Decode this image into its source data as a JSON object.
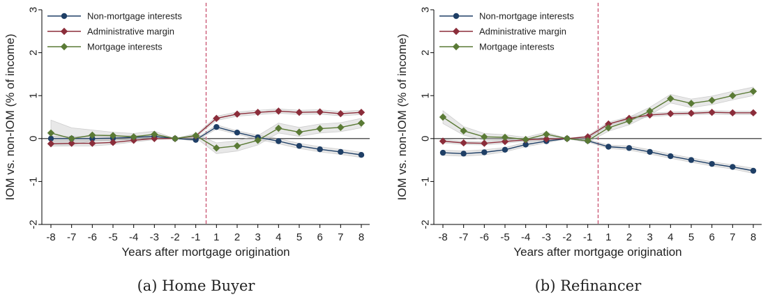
{
  "panels": [
    {
      "caption": "(a) Home Buyer",
      "chart_data": {
        "type": "line",
        "xlabel": "Years after mortgage origination",
        "ylabel": "IOM vs. non-IOM (% of income)",
        "ylim": [
          -2,
          3
        ],
        "yticks": [
          -2,
          -1,
          0,
          1,
          2,
          3
        ],
        "xtick_labels": [
          "-8",
          "-7",
          "-6",
          "-5",
          "-4",
          "-3",
          "-2",
          "-1",
          "1",
          "2",
          "3",
          "4",
          "5",
          "6",
          "7",
          "8"
        ],
        "x": [
          -8,
          -7,
          -6,
          -5,
          -4,
          -3,
          -2,
          -1,
          1,
          2,
          3,
          4,
          5,
          6,
          7,
          8
        ],
        "reference_line": {
          "position": "between -1 and 1",
          "style": "dashed"
        },
        "legend_position": "top-left",
        "series": [
          {
            "name": "Non-mortgage interests",
            "color": "#1f3f66",
            "marker": "circle",
            "values": [
              0.0,
              0.0,
              0.0,
              0.01,
              0.03,
              0.05,
              0.0,
              -0.03,
              0.27,
              0.14,
              0.03,
              -0.06,
              -0.17,
              -0.25,
              -0.31,
              -0.38
            ],
            "ci_low": [
              -0.05,
              -0.05,
              -0.05,
              -0.04,
              -0.01,
              0.02,
              0.0,
              -0.06,
              0.22,
              0.1,
              -0.02,
              -0.12,
              -0.23,
              -0.31,
              -0.37,
              -0.44
            ],
            "ci_high": [
              0.05,
              0.05,
              0.05,
              0.06,
              0.07,
              0.08,
              0.0,
              0.0,
              0.32,
              0.18,
              0.08,
              0.0,
              -0.11,
              -0.19,
              -0.25,
              -0.32
            ]
          },
          {
            "name": "Administrative margin",
            "color": "#8b2d3a",
            "marker": "diamond",
            "values": [
              -0.12,
              -0.11,
              -0.11,
              -0.09,
              -0.04,
              0.0,
              0.0,
              0.06,
              0.47,
              0.57,
              0.61,
              0.64,
              0.61,
              0.62,
              0.58,
              0.61
            ],
            "ci_low": [
              -0.18,
              -0.17,
              -0.17,
              -0.14,
              -0.08,
              -0.03,
              0.0,
              0.03,
              0.42,
              0.52,
              0.56,
              0.59,
              0.56,
              0.57,
              0.53,
              0.56
            ],
            "ci_high": [
              -0.06,
              -0.05,
              -0.05,
              -0.04,
              0.0,
              0.03,
              0.0,
              0.09,
              0.52,
              0.62,
              0.66,
              0.69,
              0.66,
              0.67,
              0.63,
              0.66
            ]
          },
          {
            "name": "Mortgage interests",
            "color": "#5a7a35",
            "marker": "diamond",
            "values": [
              0.13,
              0.0,
              0.08,
              0.07,
              0.04,
              0.1,
              0.0,
              0.07,
              -0.22,
              -0.17,
              -0.04,
              0.24,
              0.15,
              0.23,
              0.26,
              0.36
            ],
            "ci_low": [
              -0.15,
              -0.15,
              -0.05,
              -0.03,
              -0.03,
              0.05,
              0.0,
              0.02,
              -0.35,
              -0.29,
              -0.15,
              0.13,
              0.05,
              0.13,
              0.16,
              0.25
            ],
            "ci_high": [
              0.43,
              0.25,
              0.2,
              0.15,
              0.12,
              0.17,
              0.0,
              0.12,
              -0.1,
              -0.05,
              0.07,
              0.36,
              0.26,
              0.34,
              0.37,
              0.47
            ]
          }
        ]
      }
    },
    {
      "caption": "(b) Refinancer",
      "chart_data": {
        "type": "line",
        "xlabel": "Years after mortgage origination",
        "ylabel": "IOM vs. non-IOM (% of income)",
        "ylim": [
          -2,
          3
        ],
        "yticks": [
          -2,
          -1,
          0,
          1,
          2,
          3
        ],
        "xtick_labels": [
          "-8",
          "-7",
          "-6",
          "-5",
          "-4",
          "-3",
          "-2",
          "-1",
          "1",
          "2",
          "3",
          "4",
          "5",
          "6",
          "7",
          "8"
        ],
        "x": [
          -8,
          -7,
          -6,
          -5,
          -4,
          -3,
          -2,
          -1,
          1,
          2,
          3,
          4,
          5,
          6,
          7,
          8
        ],
        "reference_line": {
          "position": "between -1 and 1",
          "style": "dashed"
        },
        "legend_position": "top-left",
        "series": [
          {
            "name": "Non-mortgage interests",
            "color": "#1f3f66",
            "marker": "circle",
            "values": [
              -0.33,
              -0.35,
              -0.32,
              -0.26,
              -0.14,
              -0.06,
              0.0,
              -0.05,
              -0.19,
              -0.22,
              -0.31,
              -0.41,
              -0.5,
              -0.59,
              -0.66,
              -0.75
            ],
            "ci_low": [
              -0.39,
              -0.41,
              -0.38,
              -0.31,
              -0.19,
              -0.1,
              0.0,
              -0.08,
              -0.23,
              -0.27,
              -0.36,
              -0.46,
              -0.55,
              -0.64,
              -0.71,
              -0.81
            ],
            "ci_high": [
              -0.27,
              -0.29,
              -0.26,
              -0.21,
              -0.09,
              -0.02,
              0.0,
              -0.02,
              -0.15,
              -0.17,
              -0.26,
              -0.36,
              -0.45,
              -0.54,
              -0.61,
              -0.69
            ]
          },
          {
            "name": "Administrative margin",
            "color": "#8b2d3a",
            "marker": "diamond",
            "values": [
              -0.06,
              -0.1,
              -0.11,
              -0.07,
              -0.03,
              -0.01,
              0.0,
              0.04,
              0.34,
              0.47,
              0.55,
              0.58,
              0.59,
              0.61,
              0.6,
              0.6
            ],
            "ci_low": [
              -0.1,
              -0.14,
              -0.15,
              -0.11,
              -0.06,
              -0.04,
              0.0,
              0.01,
              0.3,
              0.43,
              0.51,
              0.54,
              0.55,
              0.57,
              0.56,
              0.56
            ],
            "ci_high": [
              -0.02,
              -0.06,
              -0.07,
              -0.03,
              0.0,
              0.02,
              0.0,
              0.07,
              0.38,
              0.51,
              0.59,
              0.62,
              0.63,
              0.65,
              0.64,
              0.64
            ]
          },
          {
            "name": "Mortgage interests",
            "color": "#5a7a35",
            "marker": "diamond",
            "values": [
              0.5,
              0.18,
              0.04,
              0.03,
              -0.02,
              0.1,
              0.0,
              -0.05,
              0.25,
              0.41,
              0.64,
              0.93,
              0.82,
              0.89,
              1.0,
              1.1
            ],
            "ci_low": [
              0.35,
              0.08,
              -0.04,
              -0.03,
              -0.07,
              0.05,
              0.0,
              -0.09,
              0.17,
              0.32,
              0.55,
              0.83,
              0.72,
              0.79,
              0.9,
              1.0
            ],
            "ci_high": [
              0.65,
              0.28,
              0.12,
              0.09,
              0.03,
              0.15,
              0.0,
              -0.01,
              0.33,
              0.5,
              0.73,
              1.03,
              0.92,
              0.99,
              1.1,
              1.2
            ]
          }
        ]
      }
    }
  ]
}
